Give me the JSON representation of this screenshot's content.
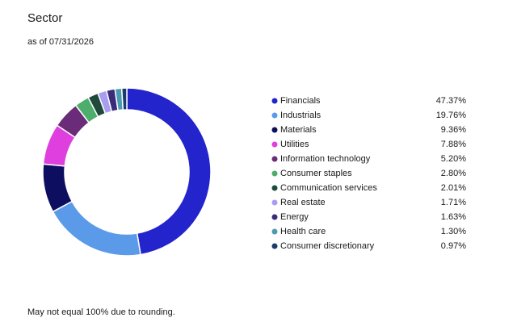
{
  "chart_data": {
    "type": "donut",
    "title": "Sector",
    "subtitle": "as of 07/31/2026",
    "categories": [
      "Financials",
      "Industrials",
      "Materials",
      "Utilities",
      "Information technology",
      "Consumer staples",
      "Communication services",
      "Real estate",
      "Energy",
      "Health care",
      "Consumer discretionary"
    ],
    "values": [
      47.37,
      19.76,
      9.36,
      7.88,
      5.2,
      2.8,
      2.01,
      1.71,
      1.63,
      1.3,
      0.97
    ],
    "value_labels": [
      "47.37%",
      "19.76%",
      "9.36%",
      "7.88%",
      "5.20%",
      "2.80%",
      "2.01%",
      "1.71%",
      "1.63%",
      "1.30%",
      "0.97%"
    ],
    "colors": [
      "#2424cc",
      "#5a9ae8",
      "#0e0e60",
      "#de3fde",
      "#6a2c78",
      "#4dae6c",
      "#1f4a3b",
      "#a99df0",
      "#3b2b7c",
      "#4b9bb1",
      "#1c3b6c"
    ],
    "note": "May not equal 100% due to rounding."
  }
}
